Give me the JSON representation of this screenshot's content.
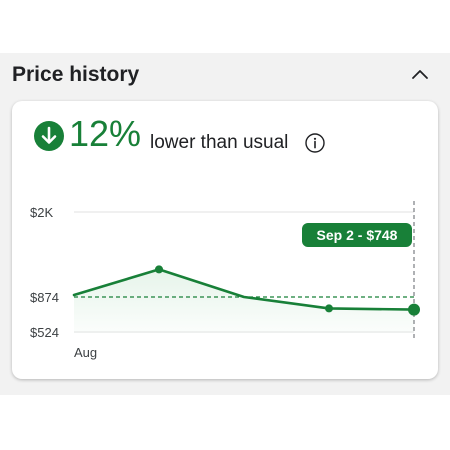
{
  "section": {
    "title": "Price history",
    "collapse_icon": "chevron-up-icon"
  },
  "summary": {
    "icon": "arrow-down-circle-icon",
    "percent": "12%",
    "label": "lower than usual",
    "info_icon": "info-icon"
  },
  "tooltip": {
    "text": "Sep 2 - $748"
  },
  "colors": {
    "accent": "#188038",
    "fill": "#e6f4ea",
    "grid": "#e0e0e0",
    "text": "#202124",
    "muted": "#5f6368"
  },
  "chart_data": {
    "type": "line",
    "x": [
      0,
      1,
      2,
      3,
      4
    ],
    "values": [
      900,
      1240,
      874,
      760,
      748
    ],
    "markers": [
      1,
      3,
      4
    ],
    "yticks": [
      {
        "label": "$2K",
        "value": 2000
      },
      {
        "label": "$874",
        "value": 874
      },
      {
        "label": "$524",
        "value": 524
      }
    ],
    "xticks": [
      {
        "label": "Aug",
        "x": 0
      }
    ],
    "reference_value": 874,
    "highlight_x": 4,
    "xlabel": "",
    "ylabel": ""
  }
}
